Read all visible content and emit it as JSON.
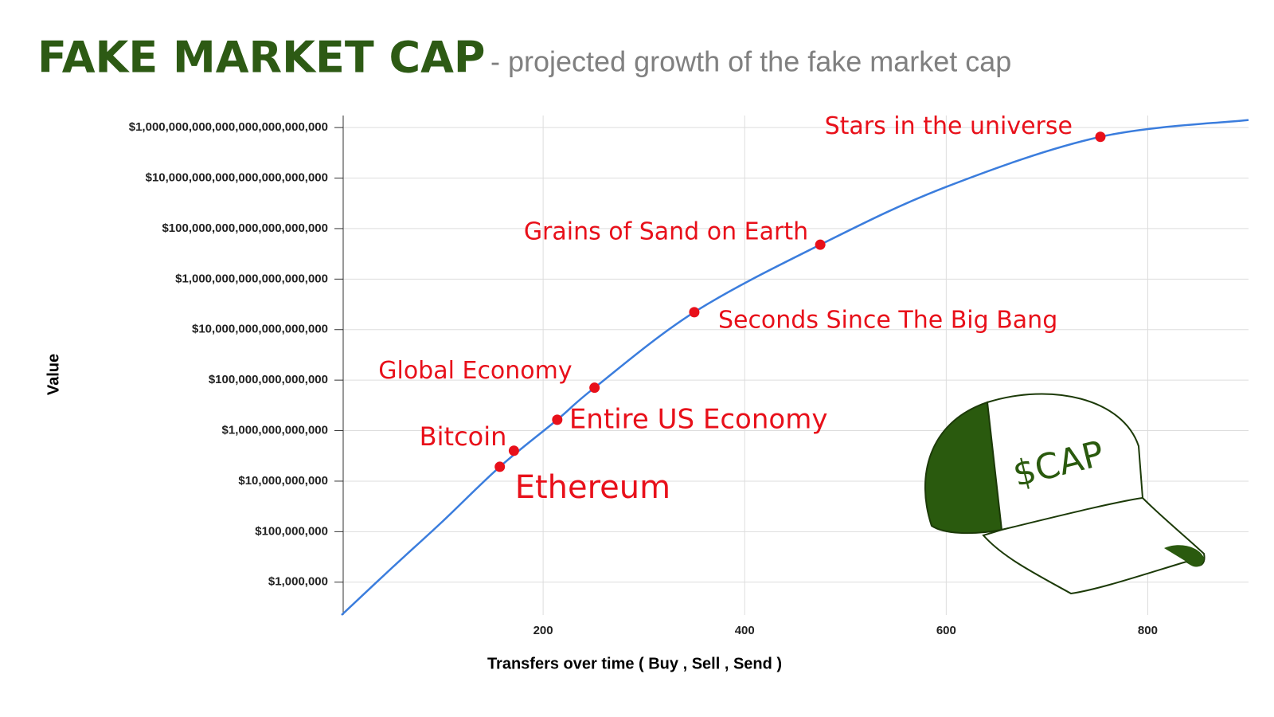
{
  "chart_data": {
    "type": "line",
    "title": "FAKE MARKET CAP",
    "subtitle": "- projected growth of the fake market cap",
    "x_label": "Transfers over time ( Buy , Sell , Send )",
    "y_label": "Value",
    "log_scale_y": true,
    "grid": true,
    "color": "#3b7ddd",
    "x": [
      0,
      50,
      100,
      157,
      214,
      251,
      350,
      475,
      600,
      753,
      900
    ],
    "values": [
      50000,
      3700000,
      250000000,
      37000000000,
      2700000000000,
      50000000000000,
      49000000000000000,
      23000000000000000000,
      4500000000000000000000,
      430000000000000000000000,
      2000000000000000000000000
    ],
    "xlim": [
      0,
      900
    ],
    "ylim": [
      50000,
      3000000000000000000000000
    ],
    "xticks": [
      200,
      400,
      600,
      800
    ],
    "yticks": [
      {
        "value": 1000000,
        "label": "$1,000,000"
      },
      {
        "value": 100000000,
        "label": "$100,000,000"
      },
      {
        "value": 10000000000,
        "label": "$10,000,000,000"
      },
      {
        "value": 1000000000000,
        "label": "$1,000,000,000,000"
      },
      {
        "value": 100000000000000,
        "label": "$100,000,000,000,000"
      },
      {
        "value": 10000000000000000,
        "label": "$10,000,000,000,000,000"
      },
      {
        "value": 1000000000000000000,
        "label": "$1,000,000,000,000,000,000"
      },
      {
        "value": 100000000000000000000,
        "label": "$100,000,000,000,000,000,000"
      },
      {
        "value": 10000000000000000000000,
        "label": "$10,000,000,000,000,000,000,000"
      },
      {
        "value": 1000000000000000000000000,
        "label": "$1,000,000,000,000,000,000,000,000"
      }
    ],
    "point_color": "#e8101a",
    "annotations": [
      {
        "text": "Ethereum",
        "x": 157,
        "y": 37000000000
      },
      {
        "text": "Bitcoin",
        "x": 171,
        "y": 160000000000
      },
      {
        "text": "Entire US Economy",
        "x": 214,
        "y": 2700000000000
      },
      {
        "text": "Global Economy",
        "x": 251,
        "y": 50000000000000
      },
      {
        "text": "Seconds Since The Big Bang",
        "x": 350,
        "y": 49000000000000000
      },
      {
        "text": "Grains of Sand on Earth",
        "x": 475,
        "y": 23000000000000000000
      },
      {
        "text": "Stars in the universe",
        "x": 753,
        "y": 430000000000000000000000
      }
    ],
    "badge_text": "$CAP"
  }
}
